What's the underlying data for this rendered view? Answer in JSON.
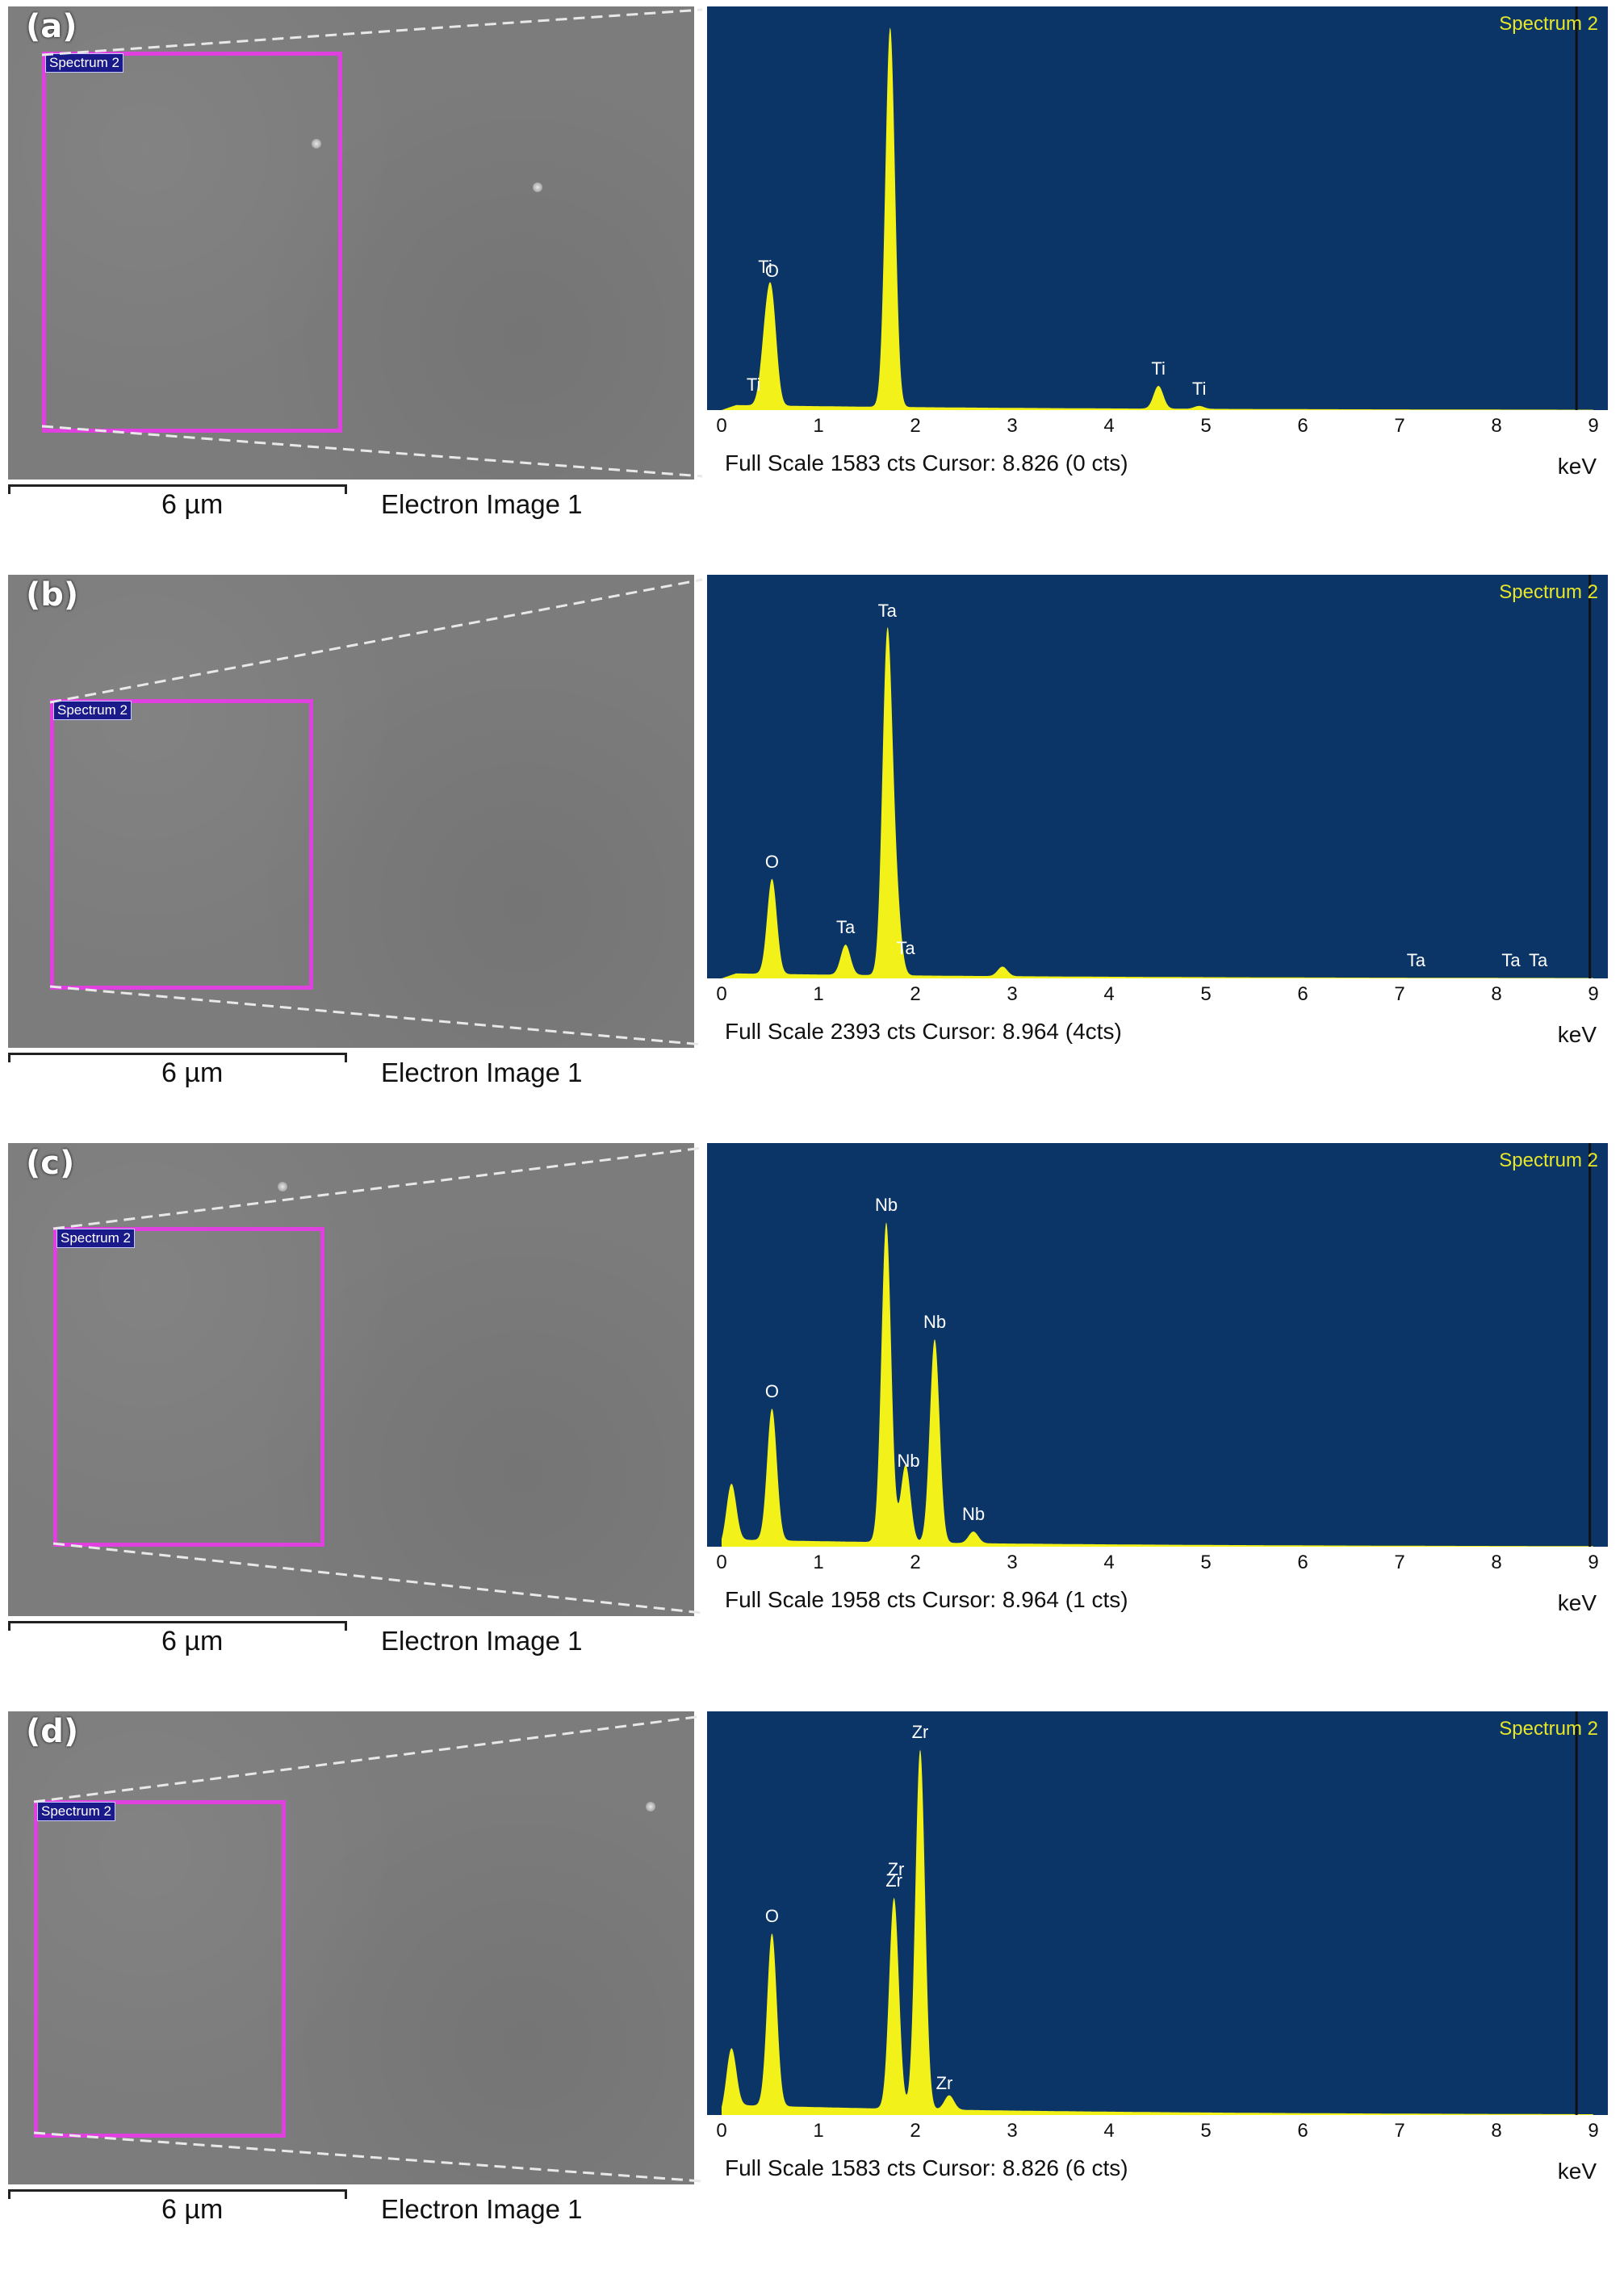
{
  "panels": [
    {
      "letter": "(a)",
      "region_label": "Spectrum 2",
      "scale_text": "6 µm",
      "image_caption": "Electron Image 1",
      "chart_data": {
        "type": "area",
        "title": "Spectrum 2",
        "xlabel": "keV",
        "xlim": [
          0,
          9
        ],
        "xticks": [
          0,
          1,
          2,
          3,
          4,
          5,
          6,
          7,
          8,
          9
        ],
        "full_scale_cts": 1583,
        "cursor_kev": 8.826,
        "cursor_cts": 0,
        "footer": "Full Scale 1583 cts Cursor: 8.826 (0 cts)",
        "peaks": [
          {
            "kev": 0.45,
            "cts": 240
          },
          {
            "kev": 0.52,
            "cts": 400
          },
          {
            "kev": 1.74,
            "cts": 1583
          },
          {
            "kev": 4.51,
            "cts": 95
          },
          {
            "kev": 4.93,
            "cts": 12
          }
        ],
        "baseline_cts": 20,
        "peak_labels": [
          {
            "text": "O",
            "kev": 0.52
          },
          {
            "text": "Ti",
            "kev": 0.45
          },
          {
            "text": "Ti",
            "kev": 0.33
          },
          {
            "text": "Ti",
            "kev": 4.51
          },
          {
            "text": "Ti",
            "kev": 4.93
          }
        ]
      }
    },
    {
      "letter": "(b)",
      "region_label": "Spectrum 2",
      "scale_text": "6 µm",
      "image_caption": "Electron Image 1",
      "chart_data": {
        "type": "area",
        "title": "Spectrum 2",
        "xlabel": "keV",
        "xlim": [
          0,
          9
        ],
        "xticks": [
          0,
          1,
          2,
          3,
          4,
          5,
          6,
          7,
          8,
          9
        ],
        "full_scale_cts": 2393,
        "cursor_kev": 8.964,
        "cursor_cts": 4,
        "footer": "Full Scale 2393 cts Cursor: 8.964 (4cts)",
        "peaks": [
          {
            "kev": 0.52,
            "cts": 600
          },
          {
            "kev": 1.28,
            "cts": 190
          },
          {
            "kev": 1.71,
            "cts": 2100
          },
          {
            "kev": 1.8,
            "cts": 450
          },
          {
            "kev": 2.9,
            "cts": 60
          }
        ],
        "baseline_cts": 30,
        "peak_labels": [
          {
            "text": "Ta",
            "kev": 1.71
          },
          {
            "text": "O",
            "kev": 0.52
          },
          {
            "text": "Ta",
            "kev": 1.28
          },
          {
            "text": "Ta",
            "kev": 1.9
          },
          {
            "text": "Ta",
            "kev": 7.17
          },
          {
            "text": "Ta",
            "kev": 8.15
          },
          {
            "text": "Ta",
            "kev": 8.43
          }
        ]
      }
    },
    {
      "letter": "(c)",
      "region_label": "Spectrum 2",
      "scale_text": "6 µm",
      "image_caption": "Electron Image 1",
      "chart_data": {
        "type": "area",
        "title": "Spectrum 2",
        "xlabel": "keV",
        "xlim": [
          0,
          9
        ],
        "xticks": [
          0,
          1,
          2,
          3,
          4,
          5,
          6,
          7,
          8,
          9
        ],
        "full_scale_cts": 1958,
        "cursor_kev": 8.964,
        "cursor_cts": 1,
        "footer": "Full Scale 1958 cts Cursor: 8.964 (1 cts)",
        "peaks": [
          {
            "kev": 0.1,
            "cts": 300
          },
          {
            "kev": 0.52,
            "cts": 680
          },
          {
            "kev": 1.7,
            "cts": 1650
          },
          {
            "kev": 1.9,
            "cts": 400
          },
          {
            "kev": 2.2,
            "cts": 1050
          },
          {
            "kev": 2.6,
            "cts": 60
          }
        ],
        "baseline_cts": 35,
        "peak_labels": [
          {
            "text": "Nb",
            "kev": 1.7
          },
          {
            "text": "Nb",
            "kev": 2.2
          },
          {
            "text": "O",
            "kev": 0.52
          },
          {
            "text": "Nb",
            "kev": 1.93
          },
          {
            "text": "Nb",
            "kev": 2.6
          }
        ]
      }
    },
    {
      "letter": "(d)",
      "region_label": "Spectrum 2",
      "scale_text": "6 µm",
      "image_caption": "Electron Image 1",
      "chart_data": {
        "type": "area",
        "title": "Spectrum 2",
        "xlabel": "keV",
        "xlim": [
          0,
          9
        ],
        "xticks": [
          0,
          1,
          2,
          3,
          4,
          5,
          6,
          7,
          8,
          9
        ],
        "full_scale_cts": 1583,
        "cursor_kev": 8.826,
        "cursor_cts": 6,
        "footer": "Full Scale 1583 cts Cursor: 8.826 (6 cts)",
        "peaks": [
          {
            "kev": 0.1,
            "cts": 250
          },
          {
            "kev": 0.52,
            "cts": 720
          },
          {
            "kev": 1.78,
            "cts": 880
          },
          {
            "kev": 2.05,
            "cts": 1500
          },
          {
            "kev": 2.35,
            "cts": 60
          }
        ],
        "baseline_cts": 40,
        "peak_labels": [
          {
            "text": "Zr",
            "kev": 2.05
          },
          {
            "text": "Zr",
            "kev": 1.78
          },
          {
            "text": "Zr",
            "kev": 1.8
          },
          {
            "text": "O",
            "kev": 0.52
          },
          {
            "text": "Zr",
            "kev": 2.3
          }
        ]
      }
    }
  ]
}
